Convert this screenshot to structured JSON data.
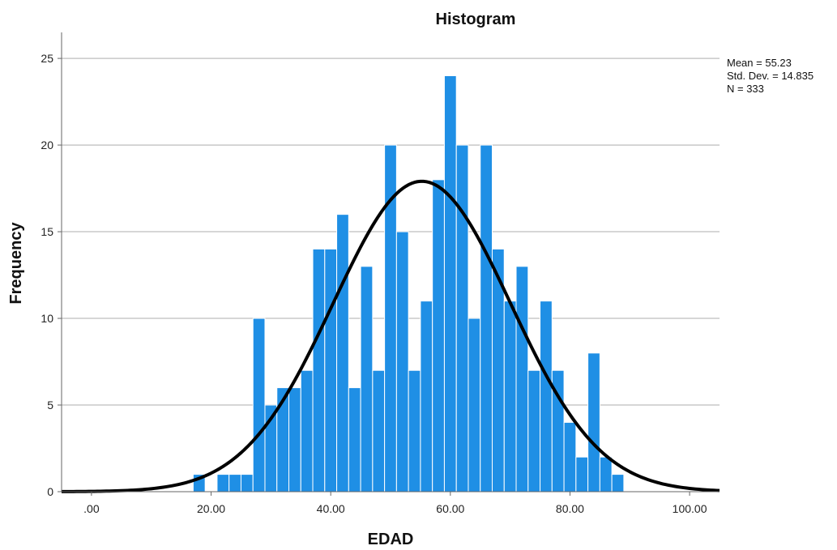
{
  "chart_data": {
    "type": "histogram",
    "title": "Histogram",
    "xlabel": "EDAD",
    "ylabel": "Frequency",
    "xlim": [
      -5,
      105
    ],
    "ylim": [
      0,
      26.5
    ],
    "x_tick_labels": [
      {
        "value": 0,
        "label": ".00"
      },
      {
        "value": 20,
        "label": "20.00"
      },
      {
        "value": 40,
        "label": "40.00"
      },
      {
        "value": 60,
        "label": "60.00"
      },
      {
        "value": 80,
        "label": "80.00"
      },
      {
        "value": 100,
        "label": "100.00"
      }
    ],
    "y_tick_labels": [
      {
        "value": 0,
        "label": "0"
      },
      {
        "value": 5,
        "label": "5"
      },
      {
        "value": 10,
        "label": "10"
      },
      {
        "value": 15,
        "label": "15"
      },
      {
        "value": 20,
        "label": "20"
      },
      {
        "value": 25,
        "label": "25"
      }
    ],
    "grid": "horizontal",
    "bar_color": "#1f8fe5",
    "curve_color": "#000000",
    "bin_width": 2,
    "bins": [
      {
        "start": 17,
        "count": 1
      },
      {
        "start": 19,
        "count": 0
      },
      {
        "start": 21,
        "count": 1
      },
      {
        "start": 23,
        "count": 1
      },
      {
        "start": 25,
        "count": 1
      },
      {
        "start": 27,
        "count": 10
      },
      {
        "start": 29,
        "count": 5
      },
      {
        "start": 31,
        "count": 6
      },
      {
        "start": 33,
        "count": 6
      },
      {
        "start": 35,
        "count": 7
      },
      {
        "start": 37,
        "count": 14
      },
      {
        "start": 39,
        "count": 14
      },
      {
        "start": 41,
        "count": 16
      },
      {
        "start": 43,
        "count": 6
      },
      {
        "start": 45,
        "count": 13
      },
      {
        "start": 47,
        "count": 7
      },
      {
        "start": 49,
        "count": 20
      },
      {
        "start": 51,
        "count": 15
      },
      {
        "start": 53,
        "count": 7
      },
      {
        "start": 55,
        "count": 11
      },
      {
        "start": 57,
        "count": 18
      },
      {
        "start": 59,
        "count": 24
      },
      {
        "start": 61,
        "count": 20
      },
      {
        "start": 63,
        "count": 10
      },
      {
        "start": 65,
        "count": 20
      },
      {
        "start": 67,
        "count": 14
      },
      {
        "start": 69,
        "count": 11
      },
      {
        "start": 71,
        "count": 13
      },
      {
        "start": 73,
        "count": 7
      },
      {
        "start": 75,
        "count": 11
      },
      {
        "start": 77,
        "count": 7
      },
      {
        "start": 79,
        "count": 4
      },
      {
        "start": 81,
        "count": 2
      },
      {
        "start": 83,
        "count": 8
      },
      {
        "start": 85,
        "count": 2
      },
      {
        "start": 87,
        "count": 1
      }
    ],
    "normal_curve": {
      "mean": 55.23,
      "std_dev": 14.835,
      "n": 333
    },
    "stats_labels": [
      "Mean = 55.23",
      "Std. Dev. = 14.835",
      "N = 333"
    ]
  }
}
